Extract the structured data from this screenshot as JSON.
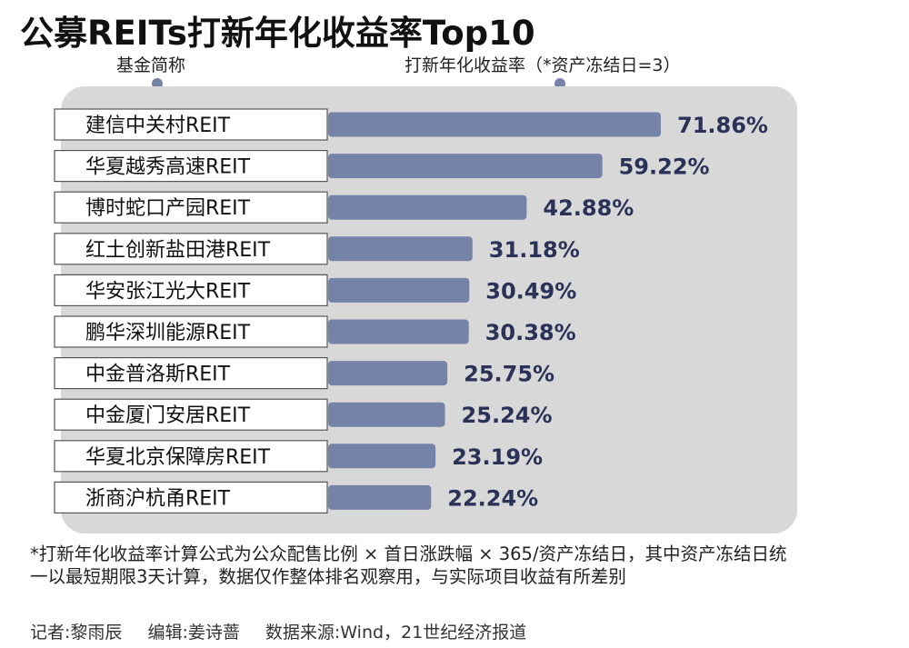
{
  "chart_data": {
    "type": "bar",
    "orientation": "horizontal",
    "title": "公募REITs打新年化收益率Top10",
    "category_label": "基金简称",
    "value_label": "打新年化收益率（*资产冻结日=3）",
    "unit": "%",
    "categories": [
      "建信中关村REIT",
      "华夏越秀高速REIT",
      "博时蛇口产园REIT",
      "红土创新盐田港REIT",
      "华安张江光大REIT",
      "鹏华深圳能源REIT",
      "中金普洛斯REIT",
      "中金厦门安居REIT",
      "华夏北京保障房REIT",
      "浙商沪杭甬REIT"
    ],
    "values": [
      71.86,
      59.22,
      42.88,
      31.18,
      30.49,
      30.38,
      25.75,
      25.24,
      23.19,
      22.24
    ],
    "value_labels": [
      "71.86%",
      "59.22%",
      "42.88%",
      "31.18%",
      "30.49%",
      "30.38%",
      "25.75%",
      "25.24%",
      "23.19%",
      "22.24%"
    ],
    "xlim": [
      0,
      71.86
    ],
    "grid": false,
    "legend": "none"
  },
  "colors": {
    "bar": "#7683a8",
    "panel": "#d8d8d8",
    "label_box_border": "#555555",
    "value_text": "#2b3257"
  },
  "footnote": "*打新年化收益率计算公式为公众配售比例 × 首日涨跌幅 × 365/资产冻结日，其中资产冻结日统一以最短期限3天计算，数据仅作整体排名观察用，与实际项目收益有所差别",
  "credits": {
    "reporter": "记者:黎雨辰",
    "editor": "编辑:姜诗蔷",
    "source": "数据来源:Wind，21世纪经济报道"
  }
}
